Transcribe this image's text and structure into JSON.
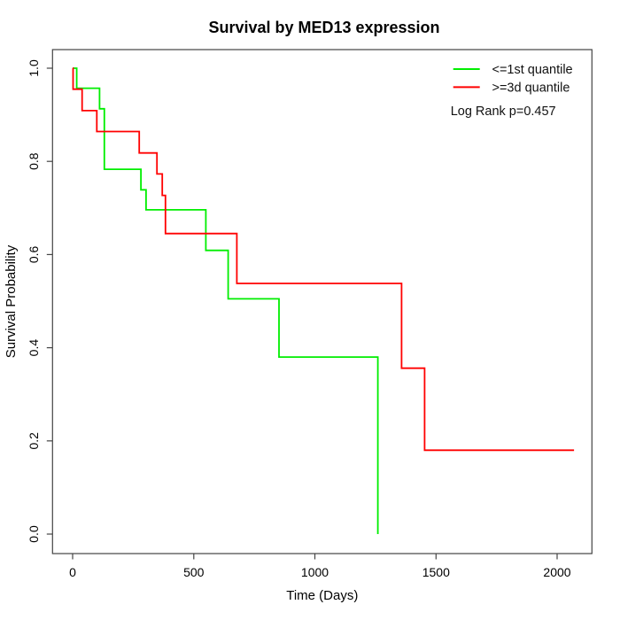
{
  "chart_data": {
    "type": "line",
    "subtype": "kaplan-meier-step",
    "title": "Survival by MED13 expression",
    "xlabel": "Time (Days)",
    "ylabel": "Survival Probability",
    "xlim": [
      0,
      2070
    ],
    "ylim": [
      0.0,
      1.0
    ],
    "x_ticks": [
      "0",
      "500",
      "1000",
      "1500",
      "2000"
    ],
    "y_ticks": [
      "0.0",
      "0.2",
      "0.4",
      "0.6",
      "0.8",
      "1.0"
    ],
    "grid": false,
    "legend_position": "top-right",
    "annotation": "Log Rank p=0.457",
    "series": [
      {
        "name": "<=1st quantile",
        "color": "#00ee00",
        "steps": [
          [
            0,
            1.0
          ],
          [
            17,
            0.957
          ],
          [
            111,
            0.913
          ],
          [
            131,
            0.783
          ],
          [
            282,
            0.739
          ],
          [
            303,
            0.696
          ],
          [
            550,
            0.609
          ],
          [
            642,
            0.505
          ],
          [
            852,
            0.38
          ],
          [
            1260,
            0.0
          ]
        ],
        "end_day": 1260
      },
      {
        "name": ">=3d quantile",
        "color": "#ff0000",
        "steps": [
          [
            0,
            1.0
          ],
          [
            2,
            0.955
          ],
          [
            39,
            0.909
          ],
          [
            100,
            0.864
          ],
          [
            275,
            0.818
          ],
          [
            348,
            0.773
          ],
          [
            370,
            0.727
          ],
          [
            383,
            0.645
          ],
          [
            678,
            0.538
          ],
          [
            1358,
            0.356
          ],
          [
            1453,
            0.18
          ]
        ],
        "end_day": 2070
      }
    ]
  }
}
